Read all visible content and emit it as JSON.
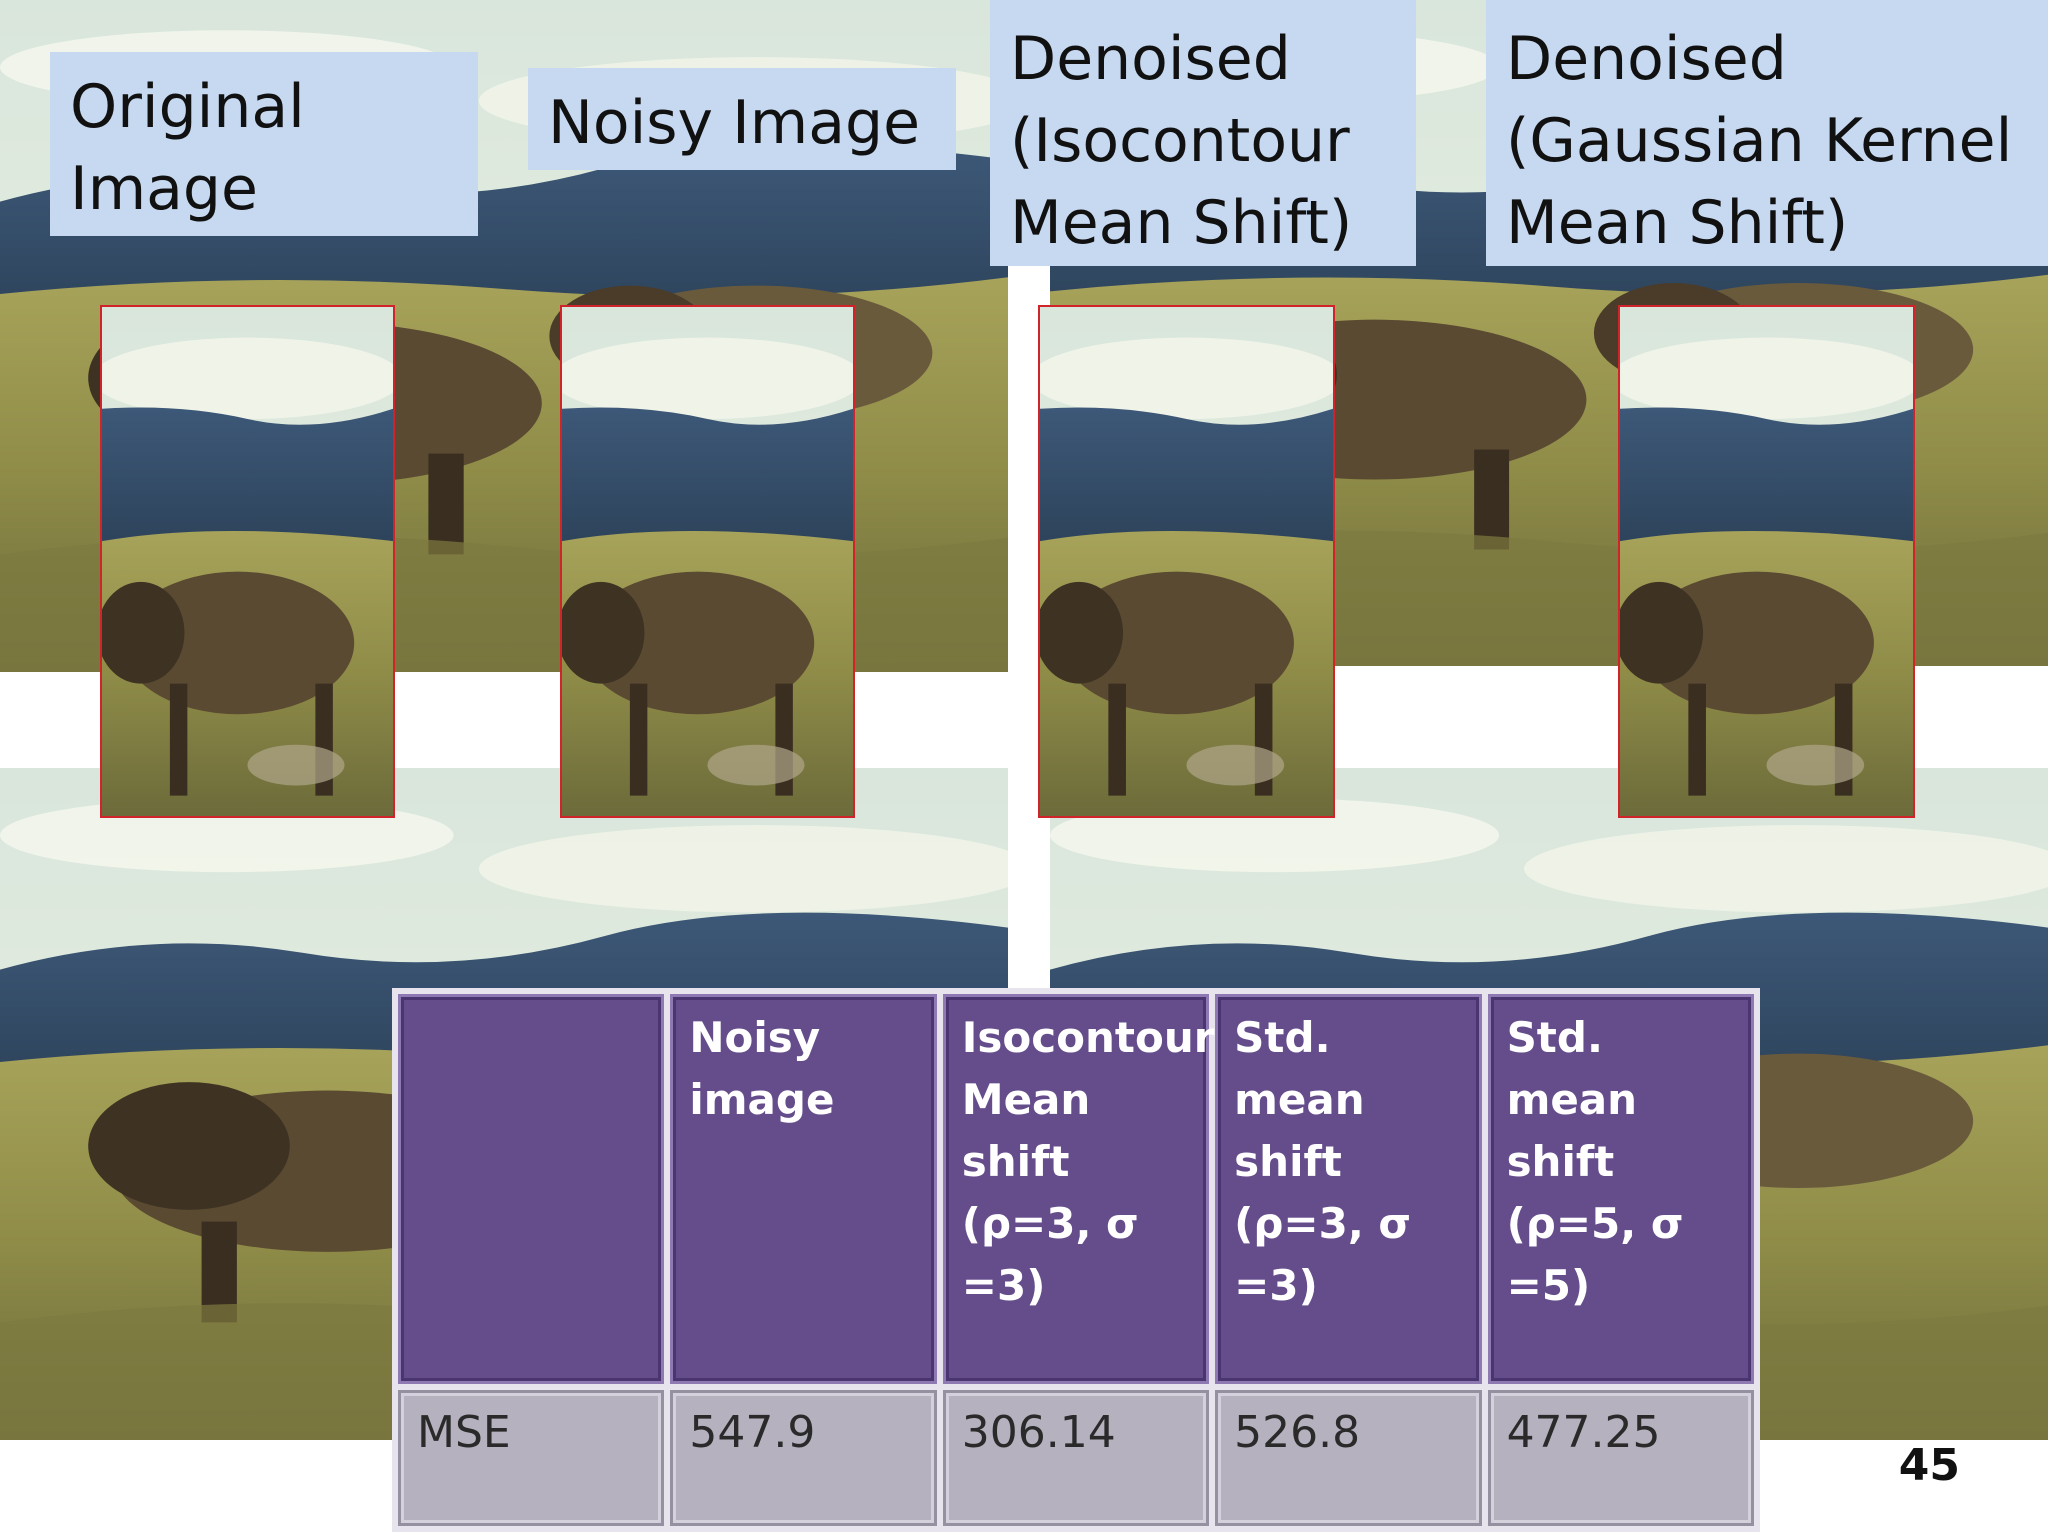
{
  "labels": {
    "original": "Original\nImage",
    "noisy": "Noisy Image",
    "isocontour": "Denoised\n(Isocontour\nMean Shift)",
    "gaussian": "Denoised\n(Gaussian Kernel\nMean Shift)"
  },
  "table": {
    "headers": [
      "",
      "Noisy\nimage",
      "Isocontour\nMean shift\n(ρ=3, σ =3)",
      "Std. mean\nshift\n(ρ=3, σ =3)",
      "Std. mean\nshift\n(ρ=5, σ =5)"
    ],
    "row": [
      "MSE",
      "547.9",
      "306.14",
      "526.8",
      "477.25"
    ]
  },
  "slide_number": "45",
  "colors": {
    "label_bg": "#c6d9f1",
    "table_header_bg": "#654d8c",
    "table_row_bg": "#b5b1bf",
    "crop_border": "#d0242a"
  }
}
